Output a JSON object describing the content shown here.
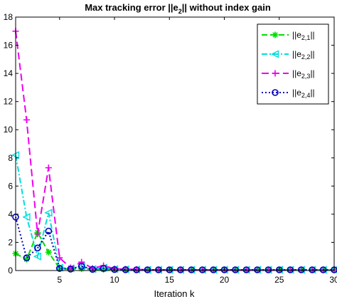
{
  "figure": {
    "title_prefix": "Max tracking  error ||e",
    "title_sub": "2",
    "title_suffix": "|| without index gain"
  },
  "chart_data": {
    "type": "line",
    "title": "Max tracking  error ||e2|| without index gain",
    "xlabel": "Iteration k",
    "ylabel": "",
    "xlim": [
      1,
      30
    ],
    "ylim": [
      0,
      18
    ],
    "xticks": [
      5,
      10,
      15,
      20,
      25,
      30
    ],
    "yticks": [
      0,
      2,
      4,
      6,
      8,
      10,
      12,
      14,
      16,
      18
    ],
    "grid": false,
    "legend_position": "top-right",
    "x": [
      1,
      2,
      3,
      4,
      5,
      6,
      7,
      8,
      9,
      10,
      11,
      12,
      13,
      14,
      15,
      16,
      17,
      18,
      19,
      20,
      21,
      22,
      23,
      24,
      25,
      26,
      27,
      28,
      29,
      30
    ],
    "series": [
      {
        "name": "||e2,1||",
        "legend_pre": "||e",
        "legend_sub": "2,1",
        "legend_post": "||",
        "color": "#00dd00",
        "dash": "8,4",
        "marker": "asterisk",
        "values": [
          1.2,
          0.8,
          2.7,
          1.3,
          0.15,
          0.1,
          0.12,
          0.08,
          0.08,
          0.07,
          0.06,
          0.05,
          0.05,
          0.05,
          0.05,
          0.05,
          0.05,
          0.05,
          0.05,
          0.05,
          0.05,
          0.05,
          0.05,
          0.05,
          0.05,
          0.05,
          0.05,
          0.05,
          0.05,
          0.05
        ]
      },
      {
        "name": "||e2,2||",
        "legend_pre": "||e",
        "legend_sub": "2,2",
        "legend_post": "||",
        "color": "#00dddd",
        "dash": "8,3,2,3",
        "marker": "triangle-left",
        "values": [
          8.2,
          3.8,
          1.0,
          4.1,
          0.2,
          0.15,
          0.3,
          0.1,
          0.2,
          0.1,
          0.08,
          0.06,
          0.05,
          0.05,
          0.05,
          0.05,
          0.05,
          0.05,
          0.05,
          0.05,
          0.05,
          0.05,
          0.05,
          0.05,
          0.05,
          0.05,
          0.05,
          0.05,
          0.05,
          0.05
        ]
      },
      {
        "name": "||e2,3||",
        "legend_pre": "||e",
        "legend_sub": "2,3",
        "legend_post": "||",
        "color": "#ee00ee",
        "dash": "10,5",
        "marker": "plus",
        "values": [
          17.0,
          10.7,
          2.6,
          7.3,
          0.9,
          0.2,
          0.6,
          0.15,
          0.35,
          0.12,
          0.1,
          0.08,
          0.06,
          0.05,
          0.05,
          0.05,
          0.05,
          0.05,
          0.05,
          0.05,
          0.05,
          0.05,
          0.05,
          0.05,
          0.05,
          0.05,
          0.05,
          0.05,
          0.05,
          0.05
        ]
      },
      {
        "name": "||e2,4||",
        "legend_pre": "||e",
        "legend_sub": "2,4",
        "legend_post": "||",
        "color": "#0000bb",
        "dash": "2,3",
        "marker": "circle",
        "values": [
          3.8,
          0.9,
          1.6,
          2.8,
          0.15,
          0.1,
          0.3,
          0.08,
          0.15,
          0.07,
          0.06,
          0.05,
          0.05,
          0.05,
          0.05,
          0.05,
          0.05,
          0.05,
          0.05,
          0.05,
          0.05,
          0.05,
          0.05,
          0.05,
          0.05,
          0.05,
          0.05,
          0.05,
          0.05,
          0.05
        ]
      }
    ]
  }
}
